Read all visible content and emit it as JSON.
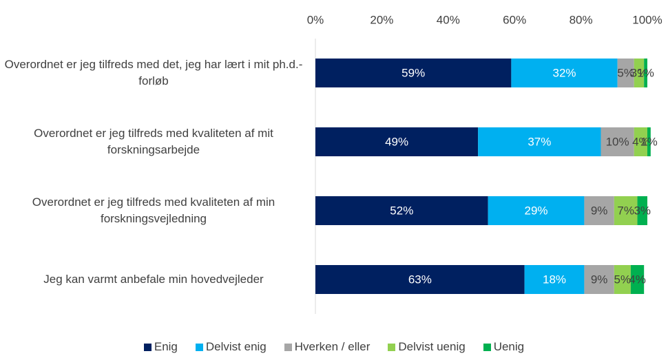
{
  "chart_data": {
    "type": "stacked-bar-horizontal",
    "categories": [
      "Overordnet er jeg tilfreds med det, jeg har lært i mit ph.d.-forløb",
      "Overordnet er jeg tilfreds med kvaliteten af mit forskningsarbejde",
      "Overordnet er jeg tilfreds med kvaliteten af min forskningsvejledning",
      "Jeg kan varmt anbefale min hovedvejleder"
    ],
    "series": [
      {
        "name": "Enig",
        "color": "#002060",
        "label_color": "#ffffff",
        "values": [
          59,
          49,
          52,
          63
        ],
        "value_labels": [
          "59%",
          "49%",
          "52%",
          "63%"
        ]
      },
      {
        "name": "Delvist enig",
        "color": "#00b0f0",
        "label_color": "#ffffff",
        "values": [
          32,
          37,
          29,
          18
        ],
        "value_labels": [
          "32%",
          "37%",
          "29%",
          "18%"
        ]
      },
      {
        "name": "Hverken / eller",
        "color": "#a6a6a6",
        "label_color": "#404040",
        "values": [
          5,
          10,
          9,
          9
        ],
        "value_labels": [
          "5%",
          "10%",
          "9%",
          "9%"
        ]
      },
      {
        "name": "Delvist uenig",
        "color": "#92d050",
        "label_color": "#404040",
        "values": [
          3,
          4,
          7,
          5
        ],
        "value_labels": [
          "3%",
          "4%",
          "7%",
          "5%"
        ]
      },
      {
        "name": "Uenig",
        "color": "#00b050",
        "label_color": "#404040",
        "values": [
          1,
          1,
          3,
          4
        ],
        "value_labels": [
          "1%",
          "1%",
          "3%",
          "4%"
        ]
      }
    ],
    "xlim": [
      0,
      100
    ],
    "xticks": [
      {
        "value": 0,
        "label": "0%"
      },
      {
        "value": 20,
        "label": "20%"
      },
      {
        "value": 40,
        "label": "40%"
      },
      {
        "value": 60,
        "label": "60%"
      },
      {
        "value": 80,
        "label": "80%"
      },
      {
        "value": 100,
        "label": "100%"
      }
    ],
    "grid": false,
    "legend": "bottom"
  }
}
